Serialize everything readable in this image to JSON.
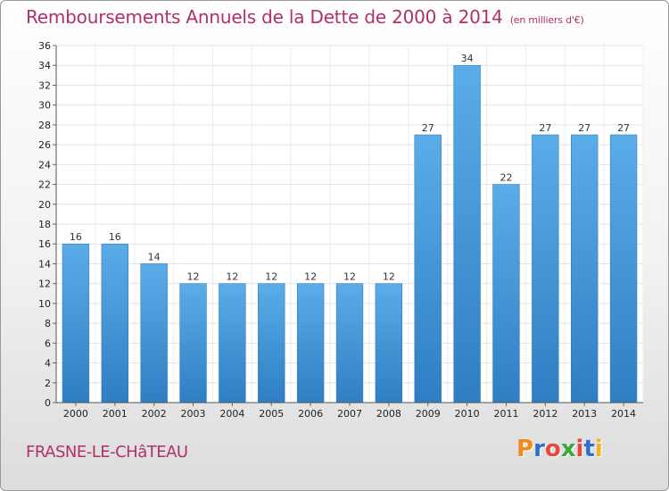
{
  "chart_data": {
    "type": "bar",
    "title": "Remboursements Annuels de la Dette de 2000 à 2014",
    "unit": "(en milliers d'€)",
    "categories": [
      "2000",
      "2001",
      "2002",
      "2003",
      "2004",
      "2005",
      "2006",
      "2007",
      "2008",
      "2009",
      "2010",
      "2011",
      "2012",
      "2013",
      "2014"
    ],
    "values": [
      16,
      16,
      14,
      12,
      12,
      12,
      12,
      12,
      12,
      27,
      34,
      22,
      27,
      27,
      27
    ],
    "ylim": [
      0,
      36
    ],
    "yticks": [
      0,
      2,
      4,
      6,
      8,
      10,
      12,
      14,
      16,
      18,
      20,
      22,
      24,
      26,
      28,
      30,
      32,
      34,
      36
    ],
    "grid": true,
    "bar_color": "#4a9fe0",
    "bar_color_dark": "#2e7fc4",
    "xlabel": "",
    "ylabel": ""
  },
  "footer": {
    "town": "FRASNE-LE-CHâTEAU",
    "logo_letters": [
      {
        "ch": "P",
        "color": "#f08a1c"
      },
      {
        "ch": "r",
        "color": "#2f6fd0"
      },
      {
        "ch": "o",
        "color": "#e8463c"
      },
      {
        "ch": "x",
        "color": "#3aa83a"
      },
      {
        "ch": "i",
        "color": "#e8463c"
      },
      {
        "ch": "t",
        "color": "#2f6fd0"
      },
      {
        "ch": "i",
        "color": "#f0b41c"
      }
    ]
  }
}
